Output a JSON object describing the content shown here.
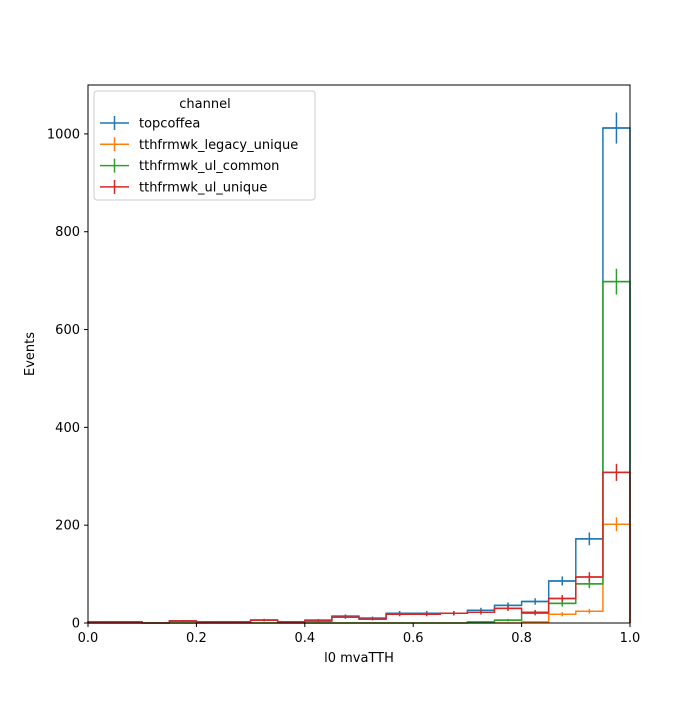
{
  "chart_data": {
    "type": "histogram",
    "xlabel": "l0 mvaTTH",
    "ylabel": "Events",
    "xlim": [
      0.0,
      1.0
    ],
    "ylim": [
      0,
      1100
    ],
    "xticks": [
      0.0,
      0.2,
      0.4,
      0.6,
      0.8,
      1.0
    ],
    "xtick_labels": [
      "0.0",
      "0.2",
      "0.4",
      "0.6",
      "0.8",
      "1.0"
    ],
    "yticks": [
      0,
      200,
      400,
      600,
      800,
      1000
    ],
    "ytick_labels": [
      "0",
      "200",
      "400",
      "600",
      "800",
      "1000"
    ],
    "legend": {
      "title": "channel",
      "position": "top-left"
    },
    "bin_edges": [
      0.0,
      0.05,
      0.1,
      0.15,
      0.2,
      0.25,
      0.3,
      0.35,
      0.4,
      0.45,
      0.5,
      0.55,
      0.6,
      0.65,
      0.7,
      0.75,
      0.8,
      0.85,
      0.9,
      0.95,
      1.0
    ],
    "series": [
      {
        "name": "topcoffea",
        "color": "#1f77b4",
        "values": [
          2,
          2,
          0,
          4,
          2,
          2,
          6,
          2,
          6,
          14,
          10,
          20,
          20,
          20,
          26,
          36,
          44,
          86,
          172,
          1012
        ],
        "errors": [
          1.4,
          1.4,
          0,
          2,
          1.4,
          1.4,
          2.4,
          1.4,
          2.4,
          3.7,
          3.2,
          4.5,
          4.5,
          4.5,
          5.1,
          6,
          6.6,
          9.3,
          13.1,
          31.8
        ]
      },
      {
        "name": "tthfrmwk_legacy_unique",
        "color": "#ff7f0e",
        "values": [
          0,
          0,
          0,
          0,
          0,
          0,
          0,
          0,
          0,
          0,
          0,
          0,
          0,
          0,
          0,
          0,
          2,
          18,
          24,
          202
        ],
        "errors": [
          0,
          0,
          0,
          0,
          0,
          0,
          0,
          0,
          0,
          0,
          0,
          0,
          0,
          0,
          0,
          0,
          1.4,
          4.2,
          4.9,
          14.2
        ]
      },
      {
        "name": "tthfrmwk_ul_common",
        "color": "#2ca02c",
        "values": [
          0,
          0,
          0,
          0,
          0,
          0,
          0,
          0,
          0,
          0,
          0,
          0,
          0,
          0,
          2,
          6,
          20,
          40,
          80,
          698
        ],
        "errors": [
          0,
          0,
          0,
          0,
          0,
          0,
          0,
          0,
          0,
          0,
          0,
          0,
          0,
          0,
          1.4,
          2.4,
          4.5,
          6.3,
          8.9,
          26.4
        ]
      },
      {
        "name": "tthfrmwk_ul_unique",
        "color": "#d62728",
        "values": [
          2,
          2,
          0,
          4,
          2,
          2,
          6,
          2,
          4,
          12,
          8,
          18,
          18,
          20,
          22,
          30,
          22,
          50,
          94,
          308
        ],
        "errors": [
          1.4,
          1.4,
          0,
          2,
          1.4,
          1.4,
          2.4,
          1.4,
          2,
          3.5,
          2.8,
          4.2,
          4.2,
          4.5,
          4.7,
          5.5,
          4.7,
          7.1,
          9.7,
          17.5
        ]
      }
    ]
  }
}
